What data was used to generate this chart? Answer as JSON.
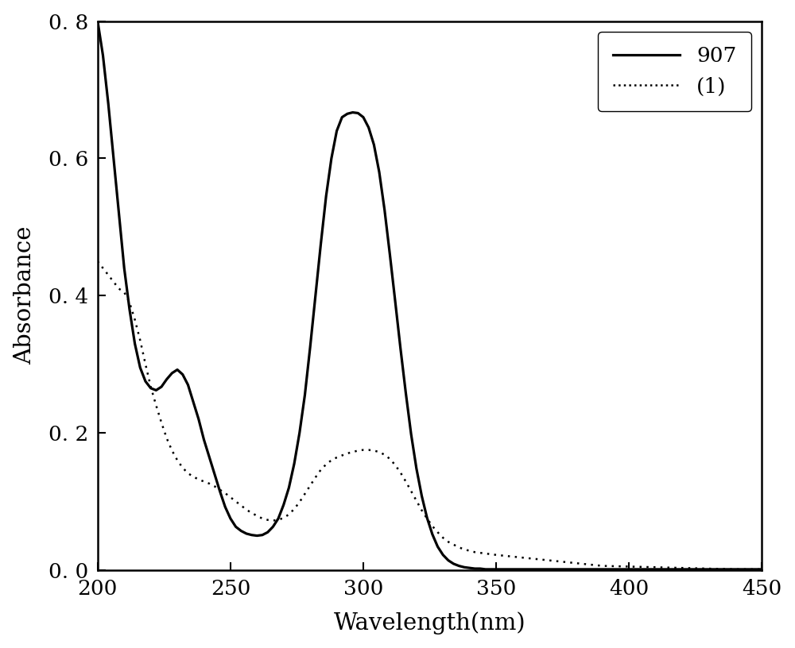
{
  "title": "",
  "xlabel": "Wavelength(nm)",
  "ylabel": "Absorbance",
  "xlim": [
    200,
    450
  ],
  "ylim": [
    0.0,
    0.8
  ],
  "xticks": [
    200,
    250,
    300,
    350,
    400,
    450
  ],
  "yticks": [
    0.0,
    0.2,
    0.4,
    0.6,
    0.8
  ],
  "ytick_labels": [
    "0. 0",
    "0. 2",
    "0. 4",
    "0. 6",
    "0. 8"
  ],
  "legend_labels": [
    "907",
    "(1)"
  ],
  "background_color": "#ffffff",
  "line_color": "#000000",
  "solid_linewidth": 2.3,
  "dotted_linewidth": 1.8,
  "series_907_x": [
    200,
    202,
    204,
    206,
    208,
    210,
    212,
    214,
    216,
    218,
    220,
    222,
    224,
    226,
    228,
    230,
    232,
    234,
    236,
    238,
    240,
    242,
    244,
    246,
    248,
    250,
    252,
    254,
    256,
    258,
    260,
    262,
    264,
    266,
    268,
    270,
    272,
    274,
    276,
    278,
    280,
    282,
    284,
    286,
    288,
    290,
    292,
    294,
    296,
    298,
    300,
    302,
    304,
    306,
    308,
    310,
    312,
    314,
    316,
    318,
    320,
    322,
    324,
    326,
    328,
    330,
    332,
    334,
    336,
    338,
    340,
    342,
    344,
    346,
    348,
    350,
    355,
    360,
    365,
    370,
    375,
    380,
    385,
    390,
    400,
    410,
    420,
    430,
    440,
    450
  ],
  "series_907_y": [
    0.8,
    0.75,
    0.68,
    0.6,
    0.52,
    0.44,
    0.38,
    0.33,
    0.295,
    0.275,
    0.265,
    0.262,
    0.267,
    0.278,
    0.287,
    0.292,
    0.285,
    0.27,
    0.245,
    0.22,
    0.19,
    0.165,
    0.14,
    0.115,
    0.092,
    0.075,
    0.063,
    0.057,
    0.053,
    0.051,
    0.05,
    0.051,
    0.055,
    0.063,
    0.075,
    0.095,
    0.12,
    0.155,
    0.2,
    0.255,
    0.325,
    0.4,
    0.475,
    0.545,
    0.6,
    0.64,
    0.66,
    0.665,
    0.667,
    0.666,
    0.66,
    0.645,
    0.62,
    0.58,
    0.525,
    0.46,
    0.392,
    0.323,
    0.258,
    0.198,
    0.148,
    0.108,
    0.076,
    0.052,
    0.034,
    0.022,
    0.014,
    0.009,
    0.006,
    0.004,
    0.003,
    0.002,
    0.002,
    0.001,
    0.001,
    0.001,
    0.001,
    0.001,
    0.001,
    0.001,
    0.001,
    0.001,
    0.001,
    0.001,
    0.001,
    0.001,
    0.001,
    0.001,
    0.001,
    0.001
  ],
  "series_1_x": [
    200,
    202,
    204,
    206,
    208,
    210,
    212,
    214,
    216,
    218,
    220,
    222,
    224,
    226,
    228,
    230,
    232,
    234,
    236,
    238,
    240,
    242,
    244,
    246,
    248,
    250,
    252,
    254,
    256,
    258,
    260,
    262,
    264,
    266,
    268,
    270,
    272,
    274,
    276,
    278,
    280,
    282,
    284,
    286,
    288,
    290,
    292,
    294,
    296,
    298,
    300,
    302,
    304,
    306,
    308,
    310,
    312,
    314,
    316,
    318,
    320,
    322,
    324,
    326,
    328,
    330,
    332,
    334,
    336,
    338,
    340,
    342,
    344,
    346,
    348,
    350,
    355,
    360,
    365,
    370,
    375,
    380,
    385,
    390,
    400,
    410,
    420,
    430,
    440,
    450
  ],
  "series_1_y": [
    0.45,
    0.44,
    0.43,
    0.42,
    0.41,
    0.405,
    0.39,
    0.365,
    0.335,
    0.3,
    0.267,
    0.24,
    0.215,
    0.192,
    0.174,
    0.16,
    0.149,
    0.141,
    0.136,
    0.132,
    0.129,
    0.126,
    0.122,
    0.117,
    0.112,
    0.106,
    0.1,
    0.094,
    0.088,
    0.083,
    0.079,
    0.075,
    0.073,
    0.072,
    0.073,
    0.076,
    0.081,
    0.089,
    0.099,
    0.111,
    0.123,
    0.135,
    0.146,
    0.154,
    0.16,
    0.164,
    0.167,
    0.17,
    0.172,
    0.174,
    0.175,
    0.175,
    0.174,
    0.172,
    0.168,
    0.162,
    0.153,
    0.142,
    0.129,
    0.115,
    0.101,
    0.087,
    0.075,
    0.064,
    0.055,
    0.047,
    0.041,
    0.037,
    0.033,
    0.03,
    0.028,
    0.026,
    0.025,
    0.024,
    0.023,
    0.022,
    0.02,
    0.018,
    0.016,
    0.014,
    0.012,
    0.01,
    0.008,
    0.006,
    0.005,
    0.004,
    0.003,
    0.002,
    0.001,
    0.001
  ]
}
